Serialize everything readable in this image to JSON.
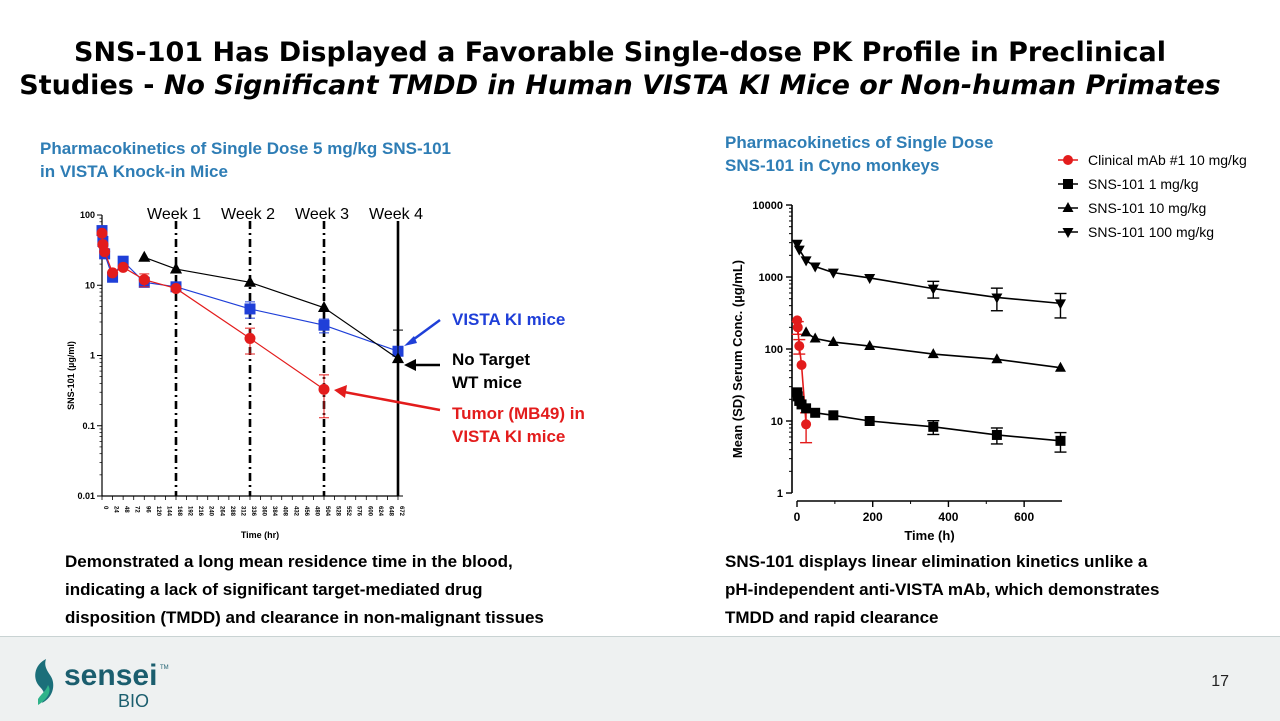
{
  "slide": {
    "title_line1": "SNS-101 Has Displayed a Favorable Single-dose PK Profile in Preclinical",
    "title_line2_prefix": "Studies - ",
    "title_line2_italic": "No Significant TMDD in Human VISTA KI Mice or Non-human Primates",
    "left_section_title_line1": "Pharmacokinetics of Single Dose 5 mg/kg SNS-101",
    "left_section_title_line2": "in VISTA Knock-in Mice",
    "right_section_title_line1": "Pharmacokinetics of Single Dose",
    "right_section_title_line2": "SNS-101 in Cyno monkeys",
    "left_caption_line1": "Demonstrated a long mean residence time in the blood,",
    "left_caption_line2": "indicating a lack of significant target-mediated drug",
    "left_caption_line3": "disposition (TMDD) and clearance in non-malignant tissues",
    "right_caption_line1": "SNS-101 displays linear elimination kinetics unlike a",
    "right_caption_line2": "pH-independent anti-VISTA mAb, which demonstrates",
    "right_caption_line3": "TMDD and rapid clearance",
    "page_number": "17",
    "logo_word": "sensei",
    "logo_sub": "BIO",
    "logo_tm": "TM"
  },
  "chart_data": [
    {
      "type": "line",
      "yscale": "log",
      "ylim": [
        0.01,
        100
      ],
      "xlim": [
        0,
        672
      ],
      "xlabel": "Time (hr)",
      "ylabel": "SNS-101 (µg/ml)",
      "ytick_labels": [
        "0.01",
        "0.1",
        "1",
        "10",
        "100"
      ],
      "xtick_labels": [
        "0",
        "24",
        "48",
        "72",
        "96",
        "120",
        "144",
        "168",
        "192",
        "216",
        "240",
        "264",
        "288",
        "312",
        "336",
        "360",
        "384",
        "408",
        "432",
        "456",
        "480",
        "504",
        "528",
        "552",
        "576",
        "600",
        "624",
        "648",
        "672"
      ],
      "week_labels": [
        "Week 1",
        "Week 2",
        "Week 3",
        "Week 4"
      ],
      "week_lines_x": [
        168,
        336,
        504,
        672
      ],
      "colors": {
        "vista": "#1f3fd8",
        "wt": "#000000",
        "tumor": "#e31c1c"
      },
      "series": [
        {
          "name": "VISTA KI mice",
          "marker": "square",
          "color": "#1f3fd8",
          "x": [
            0,
            2,
            6,
            24,
            48,
            96,
            168,
            336,
            504,
            672
          ],
          "y": [
            60,
            42,
            28,
            13,
            22,
            11,
            9.5,
            4.6,
            2.7,
            1.15
          ],
          "err": [
            0,
            0,
            0,
            0,
            0,
            0,
            0,
            1.2,
            0.6,
            0
          ]
        },
        {
          "name": "No Target WT mice",
          "marker": "triangle",
          "color": "#000000",
          "x": [
            96,
            168,
            336,
            504,
            672
          ],
          "y": [
            25,
            17,
            11,
            4.8,
            0.9
          ],
          "err": [
            0,
            0,
            0,
            0,
            1.4
          ]
        },
        {
          "name": "Tumor (MB49) in VISTA KI mice",
          "marker": "circle",
          "color": "#e31c1c",
          "x": [
            0,
            2,
            6,
            24,
            48,
            96,
            168,
            336,
            504
          ],
          "y": [
            55,
            38,
            30,
            15,
            18,
            12,
            9,
            1.75,
            0.33
          ],
          "err": [
            0,
            0,
            0,
            0,
            0,
            2.5,
            0,
            0.7,
            0.2
          ]
        }
      ],
      "annotations": {
        "vista": "VISTA KI mice",
        "wt_line1": "No Target",
        "wt_line2": "WT mice",
        "tumor_line1": "Tumor (MB49) in",
        "tumor_line2": "VISTA KI mice"
      }
    },
    {
      "type": "line",
      "yscale": "log",
      "ylim": [
        1,
        10000
      ],
      "xlim": [
        0,
        700
      ],
      "xlabel": "Time (h)",
      "ylabel": "Mean (SD) Serum Conc. (µg/mL)",
      "ytick_labels": [
        "1",
        "10",
        "100",
        "1000",
        "10000"
      ],
      "xtick_labels": [
        "0",
        "200",
        "400",
        "600"
      ],
      "xtick_values": [
        0,
        200,
        400,
        600
      ],
      "legend_position": "top-right",
      "series": [
        {
          "name": "Clinical mAb #1 10 mg/kg",
          "marker": "circle",
          "color": "#e31c1c",
          "x": [
            0.5,
            2,
            6,
            12,
            24
          ],
          "y": [
            250,
            200,
            110,
            60,
            9
          ],
          "err": [
            0,
            40,
            25,
            0,
            4
          ]
        },
        {
          "name": "SNS-101 1 mg/kg",
          "marker": "square",
          "color": "#000000",
          "x": [
            0.5,
            2,
            6,
            12,
            24,
            48,
            96,
            192,
            360,
            528,
            696
          ],
          "y": [
            25,
            22,
            19,
            17,
            15,
            13,
            12,
            10,
            8.3,
            6.4,
            5.3
          ],
          "err": [
            0,
            0,
            0,
            0,
            0,
            0,
            0,
            0,
            1.8,
            1.6,
            1.6
          ]
        },
        {
          "name": "SNS-101 10 mg/kg",
          "marker": "triangle",
          "color": "#000000",
          "x": [
            24,
            48,
            96,
            192,
            360,
            528,
            696
          ],
          "y": [
            170,
            140,
            125,
            110,
            85,
            72,
            55
          ],
          "err": [
            0,
            0,
            0,
            0,
            0,
            0,
            0
          ]
        },
        {
          "name": "SNS-101 100 mg/kg",
          "marker": "triangle-down",
          "color": "#000000",
          "x": [
            0.5,
            6,
            24,
            48,
            96,
            192,
            360,
            528,
            696
          ],
          "y": [
            2900,
            2400,
            1700,
            1400,
            1150,
            970,
            690,
            520,
            430
          ],
          "err": [
            0,
            0,
            0,
            0,
            0,
            0,
            180,
            180,
            160
          ]
        }
      ]
    }
  ]
}
